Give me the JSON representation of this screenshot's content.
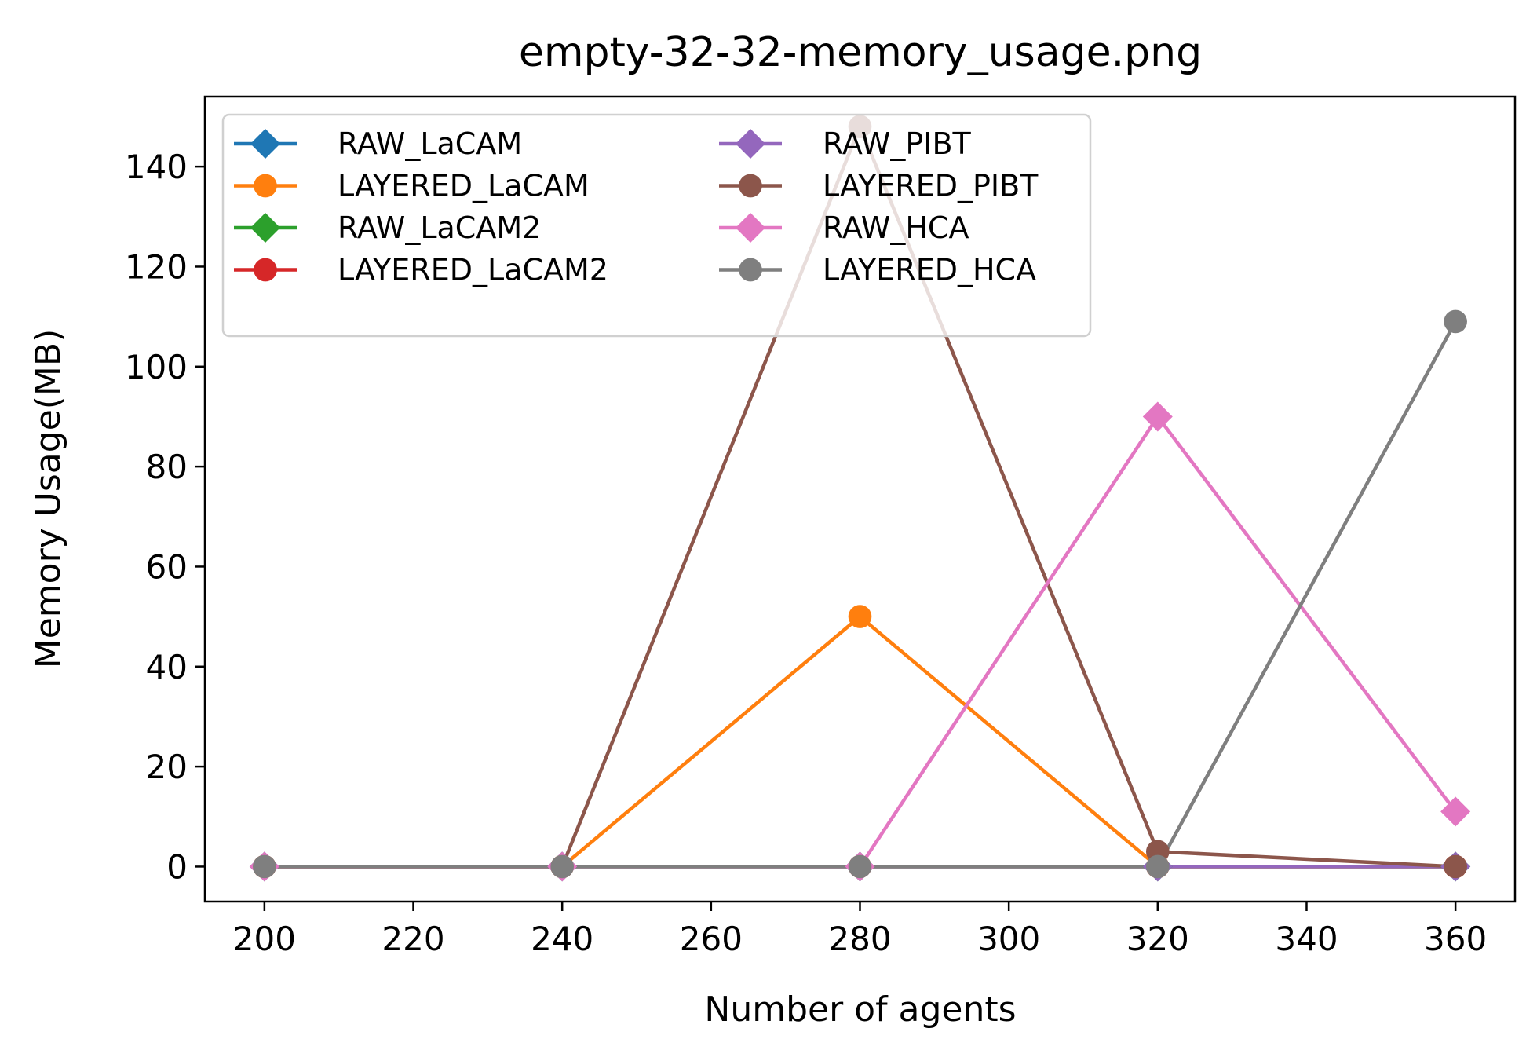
{
  "chart_data": {
    "type": "line",
    "title": "empty-32-32-memory_usage.png",
    "xlabel": "Number of agents",
    "ylabel": "Memory Usage(MB)",
    "x": [
      200,
      240,
      280,
      320,
      360
    ],
    "xlim": [
      192,
      368
    ],
    "ylim": [
      -7,
      154
    ],
    "xticks": [
      200,
      220,
      240,
      260,
      280,
      300,
      320,
      340,
      360
    ],
    "yticks": [
      0,
      20,
      40,
      60,
      80,
      100,
      120,
      140
    ],
    "legend_position": "upper-left",
    "legend_columns": 2,
    "series": [
      {
        "name": "RAW_LaCAM",
        "color": "#1f77b4",
        "marker": "diamond",
        "values": [
          0,
          0,
          0,
          0,
          0
        ]
      },
      {
        "name": "LAYERED_LaCAM",
        "color": "#ff7f0e",
        "marker": "circle",
        "values": [
          0,
          0,
          50,
          0,
          0
        ]
      },
      {
        "name": "RAW_LaCAM2",
        "color": "#2ca02c",
        "marker": "diamond",
        "values": [
          0,
          0,
          0,
          0,
          0
        ]
      },
      {
        "name": "LAYERED_LaCAM2",
        "color": "#d62728",
        "marker": "circle",
        "values": [
          0,
          0,
          0,
          0,
          0
        ]
      },
      {
        "name": "RAW_PIBT",
        "color": "#9467bd",
        "marker": "diamond",
        "values": [
          0,
          0,
          0,
          0,
          0
        ]
      },
      {
        "name": "LAYERED_PIBT",
        "color": "#8c564b",
        "marker": "circle",
        "values": [
          0,
          0,
          148,
          3,
          0
        ]
      },
      {
        "name": "RAW_HCA",
        "color": "#e377c2",
        "marker": "diamond",
        "values": [
          0,
          0,
          0,
          90,
          11
        ]
      },
      {
        "name": "LAYERED_HCA",
        "color": "#7f7f7f",
        "marker": "circle",
        "values": [
          0,
          0,
          0,
          0,
          109
        ]
      }
    ]
  }
}
